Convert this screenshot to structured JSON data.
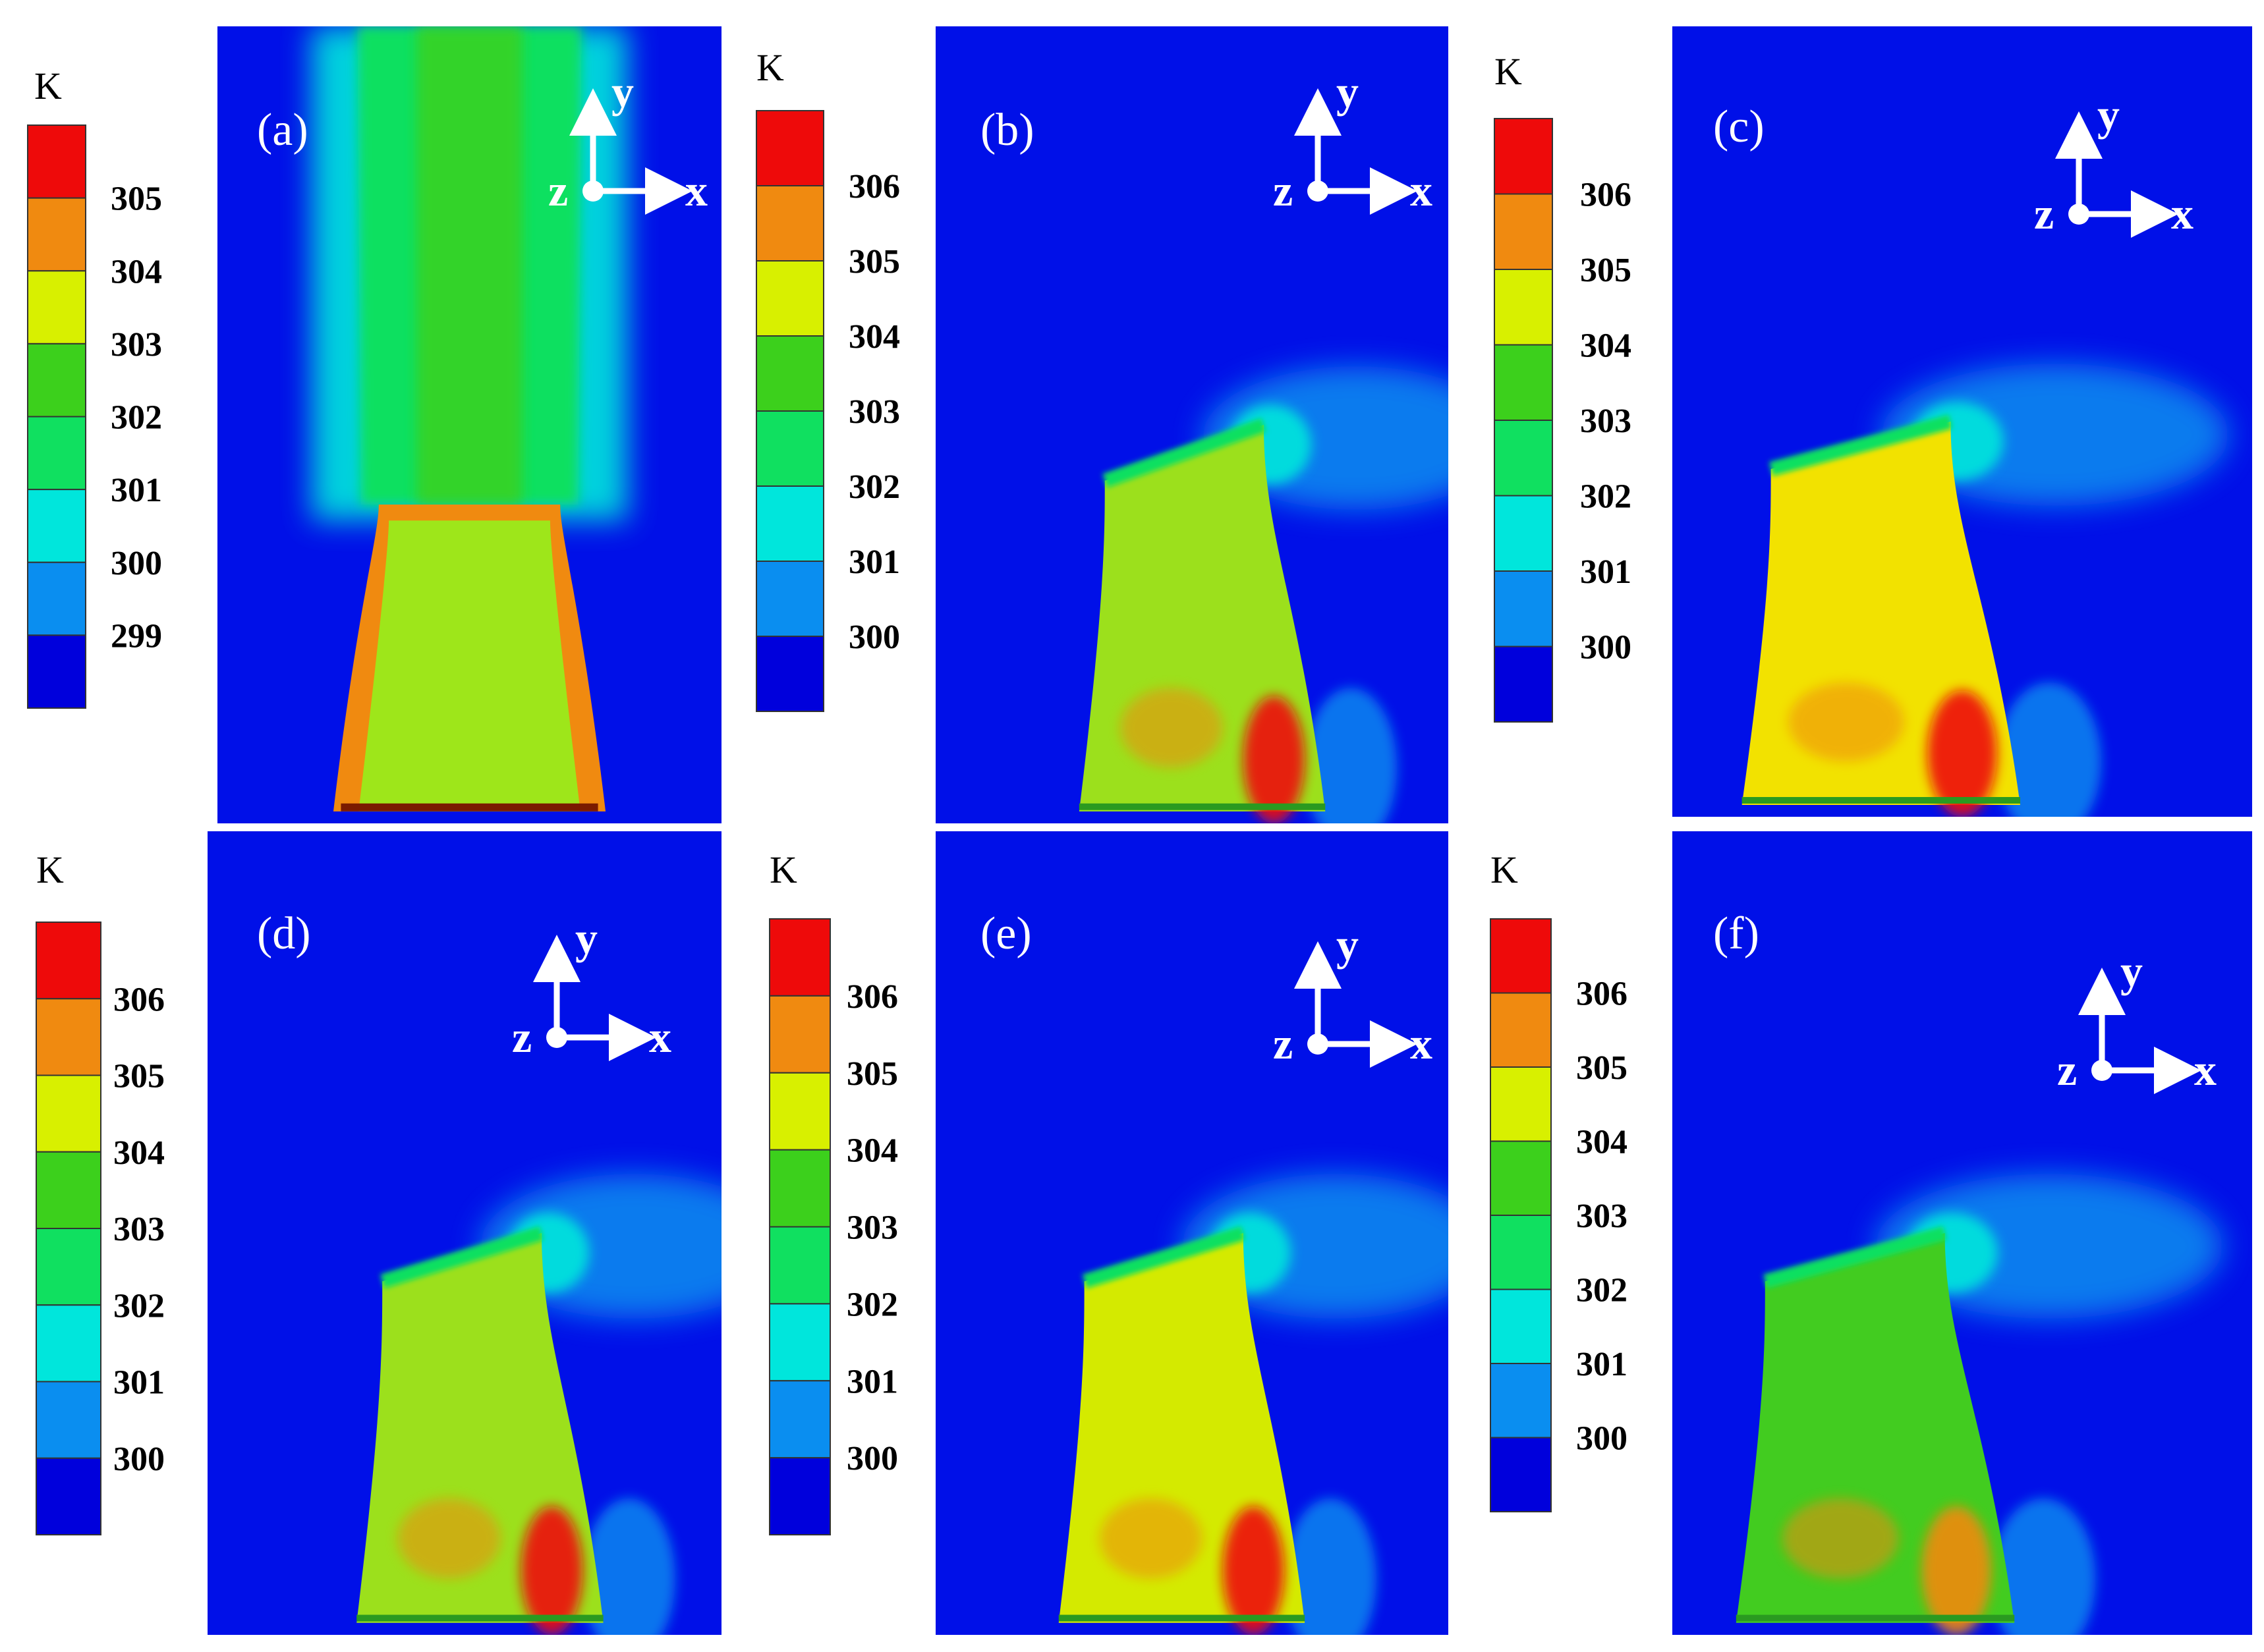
{
  "colors": {
    "background": "#0010e8",
    "band_0": "#0000dc",
    "band_1": "#0a8ef0",
    "band_2": "#00e6dc",
    "band_3": "#10e060",
    "band_4": "#3cd01c",
    "band_5": "#d8f000",
    "band_6": "#f08a10",
    "band_7": "#ee0a0a"
  },
  "panels": [
    {
      "id": "a",
      "label": "(a)",
      "unit": "K",
      "ticks": [
        "305",
        "304",
        "303",
        "302",
        "301",
        "300",
        "299"
      ]
    },
    {
      "id": "b",
      "label": "(b)",
      "unit": "K",
      "ticks": [
        "306",
        "305",
        "304",
        "303",
        "302",
        "301",
        "300"
      ]
    },
    {
      "id": "c",
      "label": "(c)",
      "unit": "K",
      "ticks": [
        "306",
        "305",
        "304",
        "303",
        "302",
        "301",
        "300"
      ]
    },
    {
      "id": "d",
      "label": "(d)",
      "unit": "K",
      "ticks": [
        "306",
        "305",
        "304",
        "303",
        "302",
        "301",
        "300"
      ]
    },
    {
      "id": "e",
      "label": "(e)",
      "unit": "K",
      "ticks": [
        "306",
        "305",
        "304",
        "303",
        "302",
        "301",
        "300"
      ]
    },
    {
      "id": "f",
      "label": "(f)",
      "unit": "K",
      "ticks": [
        "306",
        "305",
        "304",
        "303",
        "302",
        "301",
        "300"
      ]
    }
  ],
  "axes": {
    "y": "y",
    "x": "x",
    "z": "z"
  }
}
